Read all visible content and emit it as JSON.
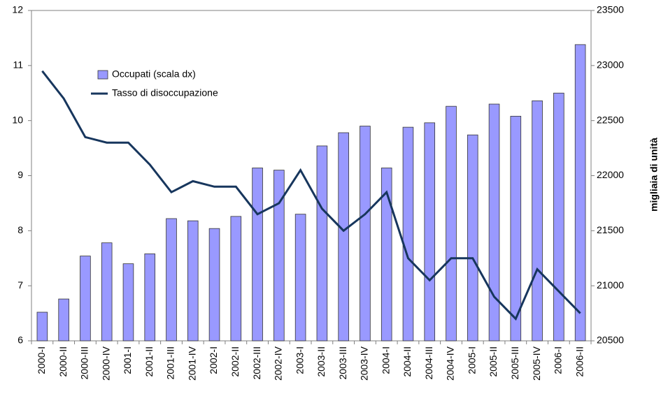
{
  "chart_data": {
    "type": "bar-line",
    "categories": [
      "2000-I",
      "2000-II",
      "2000-III",
      "2000-IV",
      "2001-I",
      "2001-II",
      "2001-III",
      "2001-IV",
      "2002-I",
      "2002-II",
      "2002-III",
      "2002-IV",
      "2003-I",
      "2003-II",
      "2003-III",
      "2003-IV",
      "2004-I",
      "2004-II",
      "2004-III",
      "2004-IV",
      "2005-I",
      "2005-II",
      "2005-III",
      "2005-IV",
      "2006-I",
      "2006-II"
    ],
    "series": [
      {
        "name": "Occupati (scala dx)",
        "type": "bar",
        "axis": "y2",
        "color": "#9999ff",
        "values": [
          20760,
          20880,
          21270,
          21390,
          21200,
          21290,
          21610,
          21590,
          21520,
          21630,
          22070,
          22050,
          21650,
          22270,
          22390,
          22450,
          22070,
          22440,
          22480,
          22630,
          22370,
          22650,
          22540,
          22680,
          22750,
          23190
        ]
      },
      {
        "name": "Tasso di disoccupazione",
        "type": "line",
        "color": "#17365d",
        "values": [
          10.9,
          10.4,
          9.7,
          9.6,
          9.6,
          9.2,
          8.7,
          8.9,
          8.8,
          8.8,
          8.3,
          8.5,
          9.1,
          8.4,
          8.0,
          8.3,
          8.7,
          7.5,
          7.1,
          7.5,
          7.5,
          6.8,
          6.4,
          7.3,
          6.9,
          6.5
        ]
      }
    ],
    "ylim": [
      6,
      12
    ],
    "yticks": [
      6,
      7,
      8,
      9,
      10,
      11,
      12
    ],
    "y2lim": [
      20500,
      23500
    ],
    "y2ticks": [
      20500,
      21000,
      21500,
      22000,
      22500,
      23000,
      23500
    ],
    "y2label": "migliaia di unità",
    "legend": "top-left"
  }
}
